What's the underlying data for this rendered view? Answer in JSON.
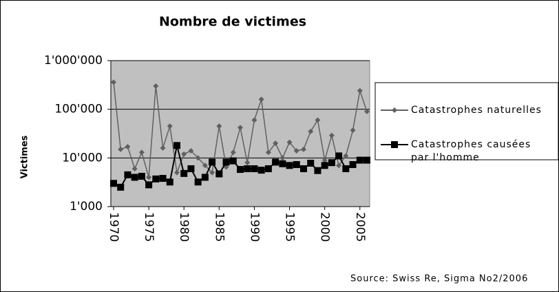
{
  "chart_data": {
    "type": "line",
    "title": "Nombre de victimes",
    "y_label": "Victimes",
    "source": "Source: Swiss Re, Sigma No2/2006",
    "x": [
      1970,
      1971,
      1972,
      1973,
      1974,
      1975,
      1976,
      1977,
      1978,
      1979,
      1980,
      1981,
      1982,
      1983,
      1984,
      1985,
      1986,
      1987,
      1988,
      1989,
      1990,
      1991,
      1992,
      1993,
      1994,
      1995,
      1996,
      1997,
      1998,
      1999,
      2000,
      2001,
      2002,
      2003,
      2004,
      2005,
      2006
    ],
    "xlim": [
      1970,
      2006
    ],
    "xticks": [
      1970,
      1975,
      1980,
      1985,
      1990,
      1995,
      2000,
      2005
    ],
    "ylim": [
      1000,
      1000000
    ],
    "log_scale": true,
    "yticks": [
      {
        "value": 1000,
        "label": "1'000"
      },
      {
        "value": 10000,
        "label": "10'000"
      },
      {
        "value": 100000,
        "label": "100'000"
      },
      {
        "value": 1000000,
        "label": "1'000'000"
      }
    ],
    "grid": true,
    "legend": "right",
    "series": [
      {
        "name": "Catastrophes naturelles",
        "color": "#606060",
        "marker": "diamond",
        "values": [
          360000,
          15000,
          17000,
          6000,
          13000,
          4000,
          300000,
          16000,
          45000,
          5000,
          12000,
          14000,
          10000,
          7000,
          5000,
          45000,
          6500,
          13000,
          42000,
          8000,
          60000,
          160000,
          13000,
          20000,
          10000,
          21000,
          14000,
          15000,
          35000,
          60000,
          9000,
          29000,
          7000,
          11000,
          37000,
          240000,
          90000
        ]
      },
      {
        "name": "Catastrophes causées par l'homme",
        "color": "#000000",
        "marker": "square",
        "values": [
          3000,
          2500,
          4500,
          4000,
          4200,
          2800,
          3700,
          3800,
          3200,
          18000,
          4800,
          6000,
          3200,
          4000,
          8200,
          4700,
          8200,
          8700,
          5800,
          6000,
          6000,
          5600,
          6000,
          8200,
          7600,
          7000,
          7300,
          6000,
          7800,
          5500,
          7000,
          8000,
          11000,
          6000,
          7300,
          9000,
          9000
        ]
      }
    ]
  }
}
